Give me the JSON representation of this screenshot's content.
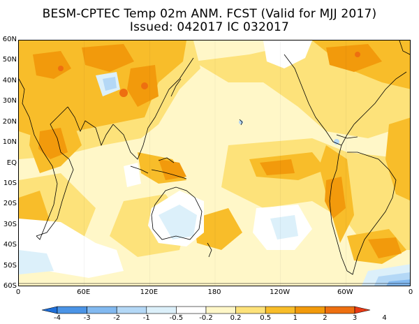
{
  "title_line1": "BESM-CPTEC Temp 02m ANM. FCST  (Valid for MJJ 2017)",
  "title_line2": "Issued:  042017 IC 032017",
  "lat_labels": [
    "60N",
    "50N",
    "40N",
    "30N",
    "20N",
    "10N",
    "EQ",
    "10S",
    "20S",
    "30S",
    "40S",
    "50S",
    "60S"
  ],
  "lon_labels": [
    "0",
    "60E",
    "120E",
    "180",
    "120W",
    "60W",
    "0"
  ],
  "colorbar": {
    "labels": [
      "-4",
      "-3",
      "-2",
      "-1",
      "-0.5",
      "-0.2",
      "0.2",
      "0.5",
      "1",
      "2",
      "3",
      "4"
    ],
    "colors": [
      "#1e6fd9",
      "#4b94e6",
      "#82b9f0",
      "#b4d8f6",
      "#dcf0fa",
      "#ffffff",
      "#fff7c8",
      "#fde27a",
      "#f8bd2a",
      "#f29a0c",
      "#ee6f10",
      "#e83a14"
    ]
  },
  "palette": {
    "neg_strong": "#82b9f0",
    "neg_light": "#b4d8f6",
    "neg_pale": "#dcf0fa",
    "neutral": "#ffffff",
    "pos_pale": "#fff7c8",
    "pos_light": "#fde27a",
    "pos_mid": "#f8bd2a",
    "pos_strong": "#f29a0c",
    "pos_deep": "#ee6f10",
    "pos_max": "#e83a14"
  }
}
